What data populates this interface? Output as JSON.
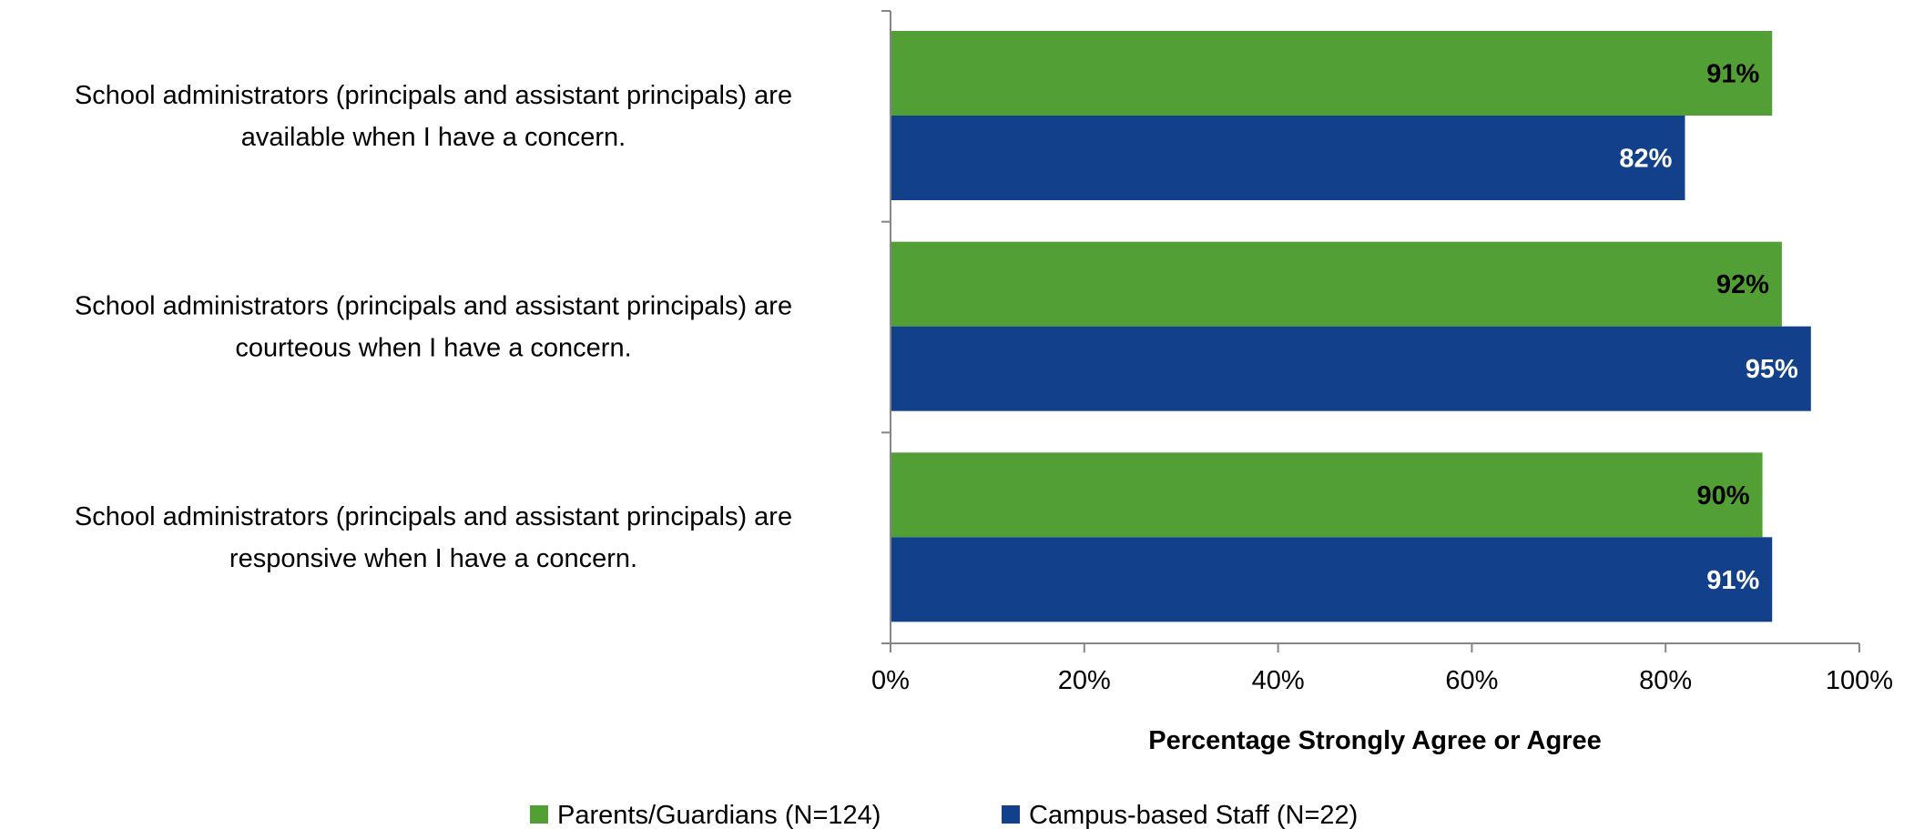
{
  "chart_data": {
    "type": "bar",
    "orientation": "horizontal",
    "categories": [
      [
        "School administrators (principals and assistant principals) are",
        "available when I have a concern."
      ],
      [
        "School administrators (principals and assistant principals) are",
        "courteous when I have a concern."
      ],
      [
        "School administrators (principals and assistant principals) are",
        "responsive when I have a concern."
      ]
    ],
    "series": [
      {
        "name": "Parents/Guardians (N=124)",
        "color": "#52a035",
        "label_color": "#000000",
        "values": [
          91,
          92,
          90
        ],
        "labels": [
          "91%",
          "92%",
          "90%"
        ]
      },
      {
        "name": "Campus-based Staff (N=22)",
        "color": "#12408a",
        "label_color": "#ffffff",
        "values": [
          82,
          95,
          91
        ],
        "labels": [
          "82%",
          "95%",
          "91%"
        ]
      }
    ],
    "xlim": [
      0,
      100
    ],
    "x_ticks": [
      "0%",
      "20%",
      "40%",
      "60%",
      "80%",
      "100%"
    ],
    "xlabel": "Percentage Strongly Agree or Agree",
    "grid": false,
    "legend_position": "bottom"
  }
}
